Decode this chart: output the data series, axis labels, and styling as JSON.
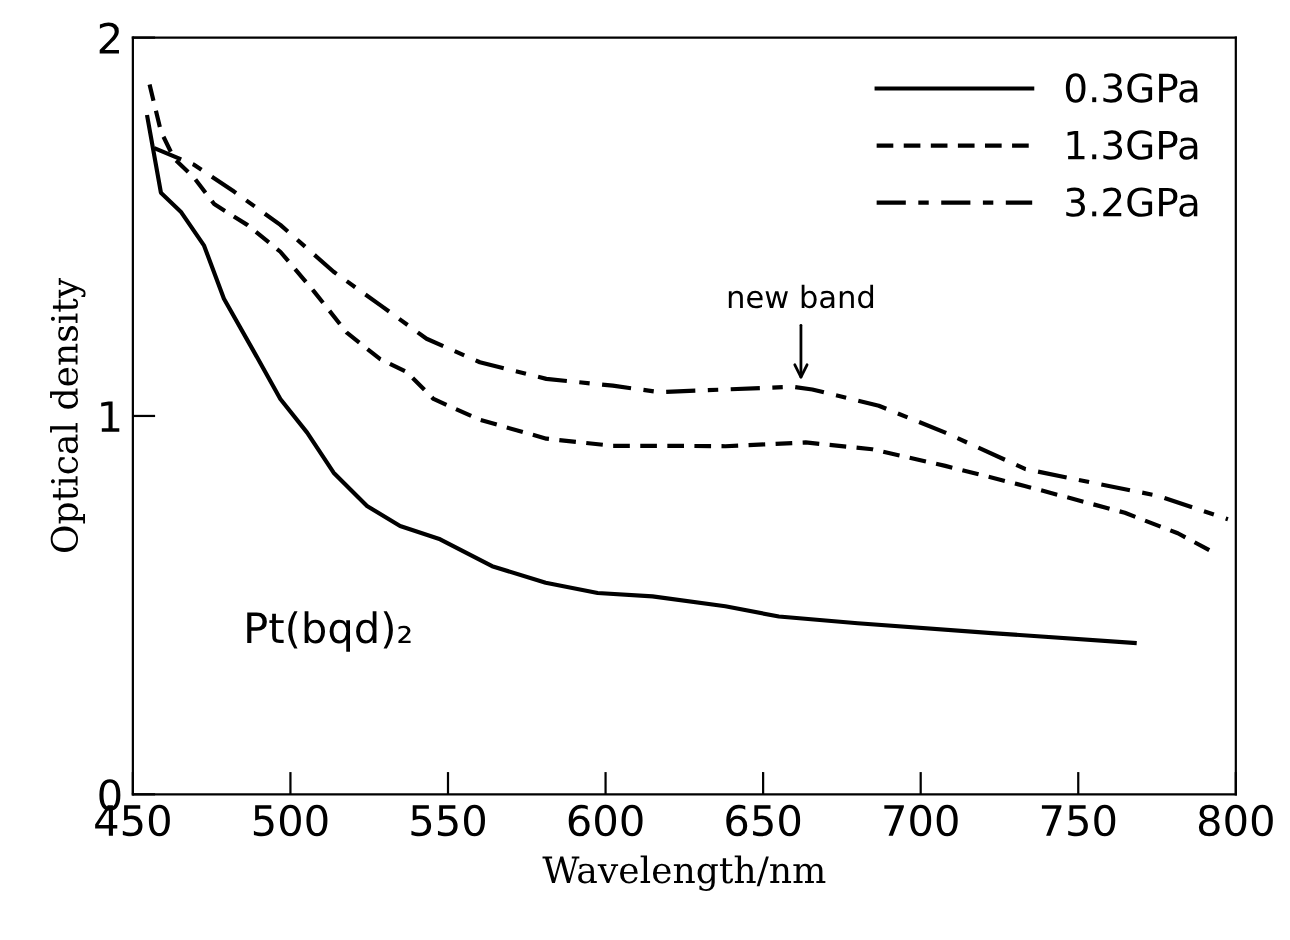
{
  "chart_data": {
    "type": "line",
    "xlabel": "Wavelength/nm",
    "ylabel": "Optical density",
    "xlim": [
      450,
      800
    ],
    "ylim": [
      0,
      2
    ],
    "xticks": [
      450,
      500,
      550,
      600,
      650,
      700,
      750,
      800
    ],
    "yticks": [
      0,
      1,
      2
    ],
    "grid": false,
    "legend": "top right",
    "marker": "none",
    "annotations": [
      {
        "text": "new band",
        "x": 662,
        "y": 1.08
      },
      "Pt(bqd)₂"
    ],
    "series": [
      {
        "name": "0.3GPa",
        "color": "#000000",
        "line_style": "solid",
        "x": [
          454.6,
          458.9,
          465.2,
          472.6,
          478.9,
          488.4,
          496.8,
          505.3,
          513.7,
          524.3,
          534.8,
          547.5,
          564,
          581,
          597.5,
          614.9,
          638,
          655,
          680,
          722.6,
          767.9
        ],
        "values": [
          1.79,
          1.59,
          1.54,
          1.45,
          1.31,
          1.17,
          1.045,
          0.956,
          0.85,
          0.762,
          0.709,
          0.674,
          0.603,
          0.559,
          0.532,
          0.523,
          0.497,
          0.47,
          0.452,
          0.426,
          0.4
        ]
      },
      {
        "name": "1.3GPa",
        "color": "#000000",
        "line_style": "dashed",
        "x": [
          455.3,
          458.9,
          463.1,
          469.4,
          475.8,
          486.3,
          496.8,
          507.4,
          517.9,
          528.5,
          536.9,
          545.4,
          560,
          581.2,
          602.3,
          623.4,
          638,
          663.5,
          684.6,
          707.8,
          733,
          764.8,
          781.6,
          793.2
        ],
        "values": [
          1.876,
          1.752,
          1.68,
          1.63,
          1.56,
          1.505,
          1.434,
          1.33,
          1.22,
          1.15,
          1.116,
          1.045,
          0.99,
          0.94,
          0.921,
          0.921,
          0.92,
          0.93,
          0.912,
          0.868,
          0.815,
          0.744,
          0.69,
          0.638
        ]
      },
      {
        "name": "3.2GPa",
        "color": "#000000",
        "line_style": "dashdot",
        "x": [
          456.8,
          469.4,
          482.1,
          496.8,
          513.7,
          528.5,
          543.2,
          560.1,
          581.2,
          602.3,
          617,
          638.2,
          659.3,
          665.6,
          686.7,
          707.8,
          733.1,
          754.2,
          775.3,
          797.5
        ],
        "values": [
          1.708,
          1.664,
          1.593,
          1.505,
          1.381,
          1.293,
          1.204,
          1.142,
          1.098,
          1.08,
          1.063,
          1.07,
          1.077,
          1.07,
          1.027,
          0.956,
          0.86,
          0.824,
          0.789,
          0.727
        ]
      }
    ]
  }
}
